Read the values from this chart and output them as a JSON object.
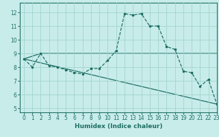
{
  "title": "",
  "xlabel": "Humidex (Indice chaleur)",
  "xlim": [
    -0.5,
    23
  ],
  "ylim": [
    4.7,
    12.7
  ],
  "yticks": [
    5,
    6,
    7,
    8,
    9,
    10,
    11,
    12
  ],
  "xticks": [
    0,
    1,
    2,
    3,
    4,
    5,
    6,
    7,
    8,
    9,
    10,
    11,
    12,
    13,
    14,
    15,
    16,
    17,
    18,
    19,
    20,
    21,
    22,
    23
  ],
  "background_color": "#c8ecea",
  "grid_color": "#a0d4cc",
  "line_color": "#1e6e64",
  "line1": {
    "x": [
      0,
      1,
      2,
      3,
      4,
      5,
      6,
      7,
      8,
      9,
      10,
      11,
      12,
      13,
      14,
      15,
      16,
      17,
      18,
      19,
      20,
      21,
      22,
      23
    ],
    "y": [
      8.6,
      8.0,
      9.0,
      8.1,
      8.0,
      7.8,
      7.6,
      7.5,
      7.9,
      7.9,
      8.5,
      9.2,
      11.9,
      11.8,
      11.9,
      11.0,
      11.0,
      9.5,
      9.3,
      7.7,
      7.6,
      6.6,
      7.1,
      5.3
    ]
  },
  "line2": {
    "x": [
      0,
      23
    ],
    "y": [
      8.6,
      5.3
    ]
  },
  "line3": {
    "x": [
      0,
      2,
      23
    ],
    "y": [
      8.6,
      9.0,
      9.0
    ]
  }
}
